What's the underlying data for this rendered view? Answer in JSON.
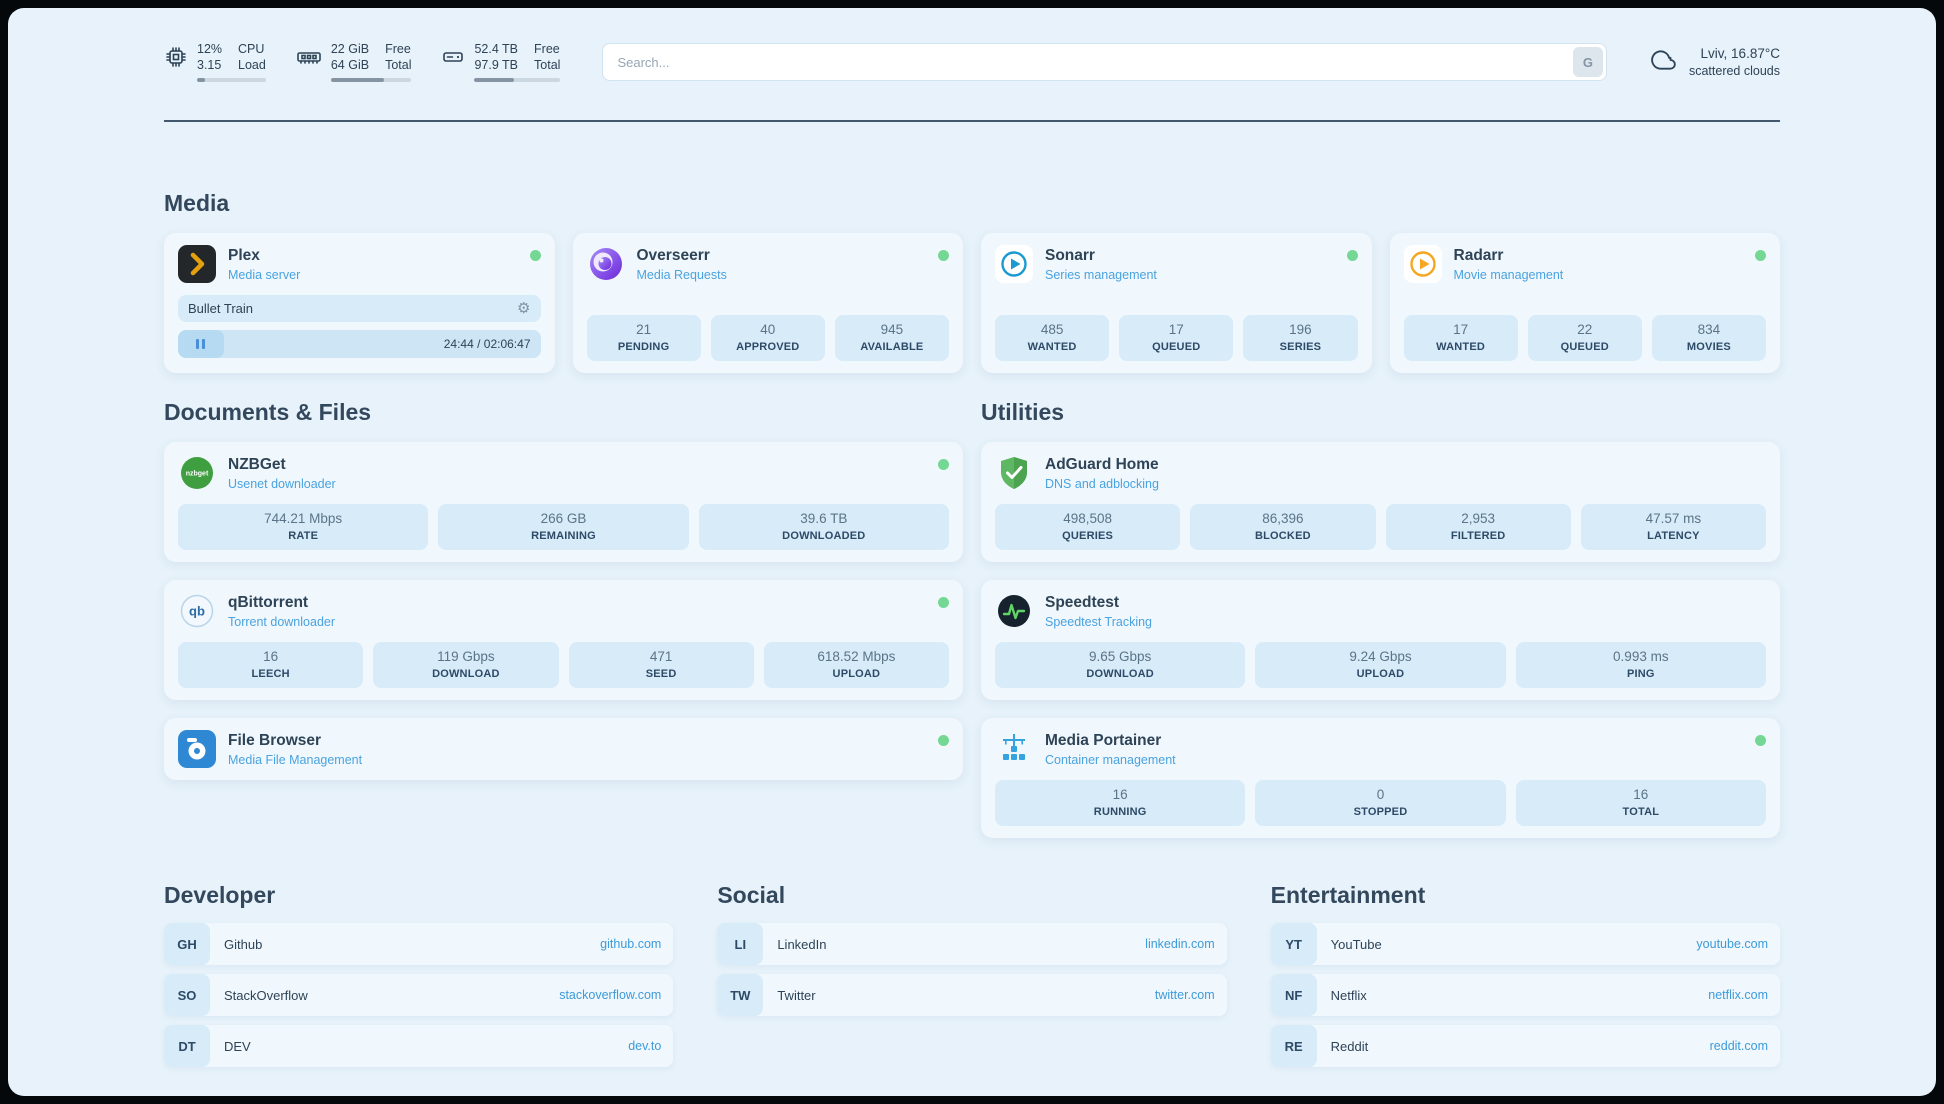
{
  "colors": {
    "accent": "#45a1e0",
    "status_online": "#74d793",
    "page_bg": "#e7f2fa",
    "card_bg": "#f0f8fd",
    "stat_bg": "#d8ebf9"
  },
  "topbar": {
    "cpu": {
      "row1_value": "12%",
      "row1_label": "CPU",
      "row2_value": "3.15",
      "row2_label": "Load",
      "progress_pct": 12
    },
    "ram": {
      "row1_value": "22 GiB",
      "row1_label": "Free",
      "row2_value": "64 GiB",
      "row2_label": "Total",
      "progress_pct": 66
    },
    "disk": {
      "row1_value": "52.4 TB",
      "row1_label": "Free",
      "row2_value": "97.9 TB",
      "row2_label": "Total",
      "progress_pct": 46
    },
    "search": {
      "placeholder": "Search...",
      "button_label": "G"
    },
    "weather": {
      "location": "Lviv, 16.87°C",
      "condition": "scattered clouds"
    }
  },
  "media": {
    "title": "Media",
    "plex": {
      "title": "Plex",
      "subtitle": "Media server",
      "now_playing": "Bullet Train",
      "time": "24:44 / 02:06:47",
      "progress_pct": 13
    },
    "overseerr": {
      "title": "Overseerr",
      "subtitle": "Media Requests",
      "stats": [
        {
          "value": "21",
          "label": "PENDING"
        },
        {
          "value": "40",
          "label": "APPROVED"
        },
        {
          "value": "945",
          "label": "AVAILABLE"
        }
      ]
    },
    "sonarr": {
      "title": "Sonarr",
      "subtitle": "Series management",
      "stats": [
        {
          "value": "485",
          "label": "WANTED"
        },
        {
          "value": "17",
          "label": "QUEUED"
        },
        {
          "value": "196",
          "label": "SERIES"
        }
      ]
    },
    "radarr": {
      "title": "Radarr",
      "subtitle": "Movie management",
      "stats": [
        {
          "value": "17",
          "label": "WANTED"
        },
        {
          "value": "22",
          "label": "QUEUED"
        },
        {
          "value": "834",
          "label": "MOVIES"
        }
      ]
    }
  },
  "documents": {
    "title": "Documents & Files",
    "nzbget": {
      "title": "NZBGet",
      "subtitle": "Usenet downloader",
      "stats": [
        {
          "value": "744.21 Mbps",
          "label": "RATE"
        },
        {
          "value": "266 GB",
          "label": "REMAINING"
        },
        {
          "value": "39.6 TB",
          "label": "DOWNLOADED"
        }
      ]
    },
    "qbittorrent": {
      "title": "qBittorrent",
      "subtitle": "Torrent downloader",
      "stats": [
        {
          "value": "16",
          "label": "LEECH"
        },
        {
          "value": "119 Gbps",
          "label": "DOWNLOAD"
        },
        {
          "value": "471",
          "label": "SEED"
        },
        {
          "value": "618.52 Mbps",
          "label": "UPLOAD"
        }
      ]
    },
    "filebrowser": {
      "title": "File Browser",
      "subtitle": "Media File Management"
    }
  },
  "utilities": {
    "title": "Utilities",
    "adguard": {
      "title": "AdGuard Home",
      "subtitle": "DNS and adblocking",
      "stats": [
        {
          "value": "498,508",
          "label": "QUERIES"
        },
        {
          "value": "86,396",
          "label": "BLOCKED"
        },
        {
          "value": "2,953",
          "label": "FILTERED"
        },
        {
          "value": "47.57 ms",
          "label": "LATENCY"
        }
      ]
    },
    "speedtest": {
      "title": "Speedtest",
      "subtitle": "Speedtest Tracking",
      "stats": [
        {
          "value": "9.65 Gbps",
          "label": "DOWNLOAD"
        },
        {
          "value": "9.24 Gbps",
          "label": "UPLOAD"
        },
        {
          "value": "0.993 ms",
          "label": "PING"
        }
      ]
    },
    "portainer": {
      "title": "Media Portainer",
      "subtitle": "Container management",
      "stats": [
        {
          "value": "16",
          "label": "RUNNING"
        },
        {
          "value": "0",
          "label": "STOPPED"
        },
        {
          "value": "16",
          "label": "TOTAL"
        }
      ]
    }
  },
  "bookmarks": {
    "developer": {
      "title": "Developer",
      "items": [
        {
          "abbr": "GH",
          "name": "Github",
          "url": "github.com"
        },
        {
          "abbr": "SO",
          "name": "StackOverflow",
          "url": "stackoverflow.com"
        },
        {
          "abbr": "DT",
          "name": "DEV",
          "url": "dev.to"
        }
      ]
    },
    "social": {
      "title": "Social",
      "items": [
        {
          "abbr": "LI",
          "name": "LinkedIn",
          "url": "linkedin.com"
        },
        {
          "abbr": "TW",
          "name": "Twitter",
          "url": "twitter.com"
        }
      ]
    },
    "entertainment": {
      "title": "Entertainment",
      "items": [
        {
          "abbr": "YT",
          "name": "YouTube",
          "url": "youtube.com"
        },
        {
          "abbr": "NF",
          "name": "Netflix",
          "url": "netflix.com"
        },
        {
          "abbr": "RE",
          "name": "Reddit",
          "url": "reddit.com"
        }
      ]
    }
  }
}
